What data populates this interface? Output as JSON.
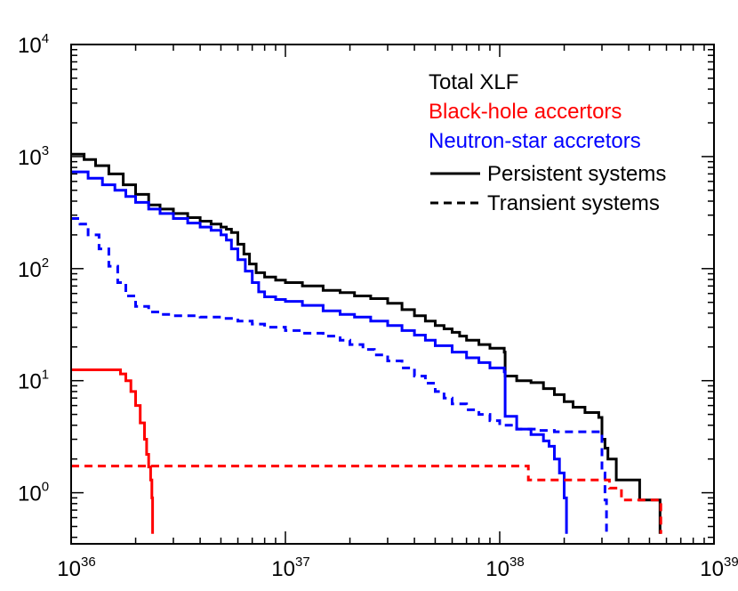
{
  "chart_data": {
    "type": "line",
    "xscale": "log",
    "yscale": "log",
    "xlim": [
      1e+36,
      1e+39
    ],
    "ylim": [
      0.35,
      10000
    ],
    "xlabel": "",
    "ylabel": "",
    "x_ticks": [
      {
        "base": "10",
        "exp": "36"
      },
      {
        "base": "10",
        "exp": "37"
      },
      {
        "base": "10",
        "exp": "38"
      },
      {
        "base": "10",
        "exp": "39"
      }
    ],
    "y_ticks": [
      {
        "base": "10",
        "exp": "0",
        "value": 1
      },
      {
        "base": "10",
        "exp": "1",
        "value": 10
      },
      {
        "base": "10",
        "exp": "2",
        "value": 100
      },
      {
        "base": "10",
        "exp": "3",
        "value": 1000
      },
      {
        "base": "10",
        "exp": "4",
        "value": 10000
      }
    ],
    "legend": {
      "placement": "top-right",
      "color_labels": [
        {
          "text": "Total XLF",
          "color": "#000000"
        },
        {
          "text": "Black-hole accertors",
          "color": "#ff0000"
        },
        {
          "text": "Neutron-star accretors",
          "color": "#0000ff"
        }
      ],
      "style_labels": [
        {
          "text": "Persistent systems",
          "dash": "solid"
        },
        {
          "text": "Transient systems",
          "dash": "dashed"
        }
      ]
    },
    "series": [
      {
        "color": "#000000",
        "dash": "solid",
        "x": [
          1e+36,
          1.15e+36,
          1.3e+36,
          1.5e+36,
          1.75e+36,
          2e+36,
          2.3e+36,
          2.6e+36,
          3e+36,
          3.5e+36,
          4e+36,
          4.5e+36,
          5e+36,
          5.3e+36,
          5.6e+36,
          6e+36,
          6.4e+36,
          6.8e+36,
          7.3e+36,
          8e+36,
          9e+36,
          1e+37,
          1.2e+37,
          1.5e+37,
          1.8e+37,
          2.1e+37,
          2.5e+37,
          3e+37,
          3.5e+37,
          4e+37,
          4.5e+37,
          5e+37,
          5.5e+37,
          6e+37,
          6.5e+37,
          7e+37,
          8e+37,
          9e+37,
          1.05e+38,
          1.06e+38,
          1.2e+38,
          1.4e+38,
          1.6e+38,
          1.8e+38,
          2e+38,
          2.2e+38,
          2.5e+38,
          2.9e+38,
          3e+38,
          3.1e+38,
          3.2e+38,
          3.5e+38,
          4e+38,
          4.5e+38,
          5.5e+38,
          5.6e+38
        ],
        "y": [
          1050,
          940,
          830,
          700,
          560,
          460,
          370,
          340,
          310,
          285,
          265,
          250,
          235,
          225,
          210,
          165,
          135,
          110,
          92,
          84,
          79,
          75,
          70,
          64,
          61,
          57,
          54,
          49,
          43,
          38,
          34,
          31,
          29,
          27,
          25,
          23,
          21,
          19.5,
          18,
          11,
          10,
          9.6,
          8.5,
          7.5,
          6.5,
          5.8,
          5.2,
          4.7,
          3,
          2.5,
          2,
          1.3,
          1.3,
          0.86,
          0.86,
          0.43
        ]
      },
      {
        "color": "#0000ff",
        "dash": "solid",
        "x": [
          1e+36,
          1.2e+36,
          1.4e+36,
          1.6e+36,
          1.8e+36,
          2e+36,
          2.3e+36,
          2.6e+36,
          3e+36,
          3.5e+36,
          4e+36,
          4.5e+36,
          5e+36,
          5.3e+36,
          5.6e+36,
          6e+36,
          6.5e+36,
          7e+36,
          7.5e+36,
          8e+36,
          9e+36,
          1e+37,
          1.2e+37,
          1.5e+37,
          1.8e+37,
          2.1e+37,
          2.5e+37,
          3e+37,
          3.5e+37,
          4e+37,
          4.5e+37,
          5e+37,
          6e+37,
          7e+37,
          8e+37,
          9e+37,
          1.05e+38,
          1.06e+38,
          1.2e+38,
          1.4e+38,
          1.6e+38,
          1.7e+38,
          1.8e+38,
          1.9e+38,
          2e+38,
          2.05e+38
        ],
        "y": [
          730,
          640,
          560,
          500,
          440,
          390,
          340,
          310,
          280,
          255,
          235,
          220,
          200,
          180,
          150,
          120,
          95,
          75,
          62,
          56,
          53,
          51,
          47,
          42,
          39,
          37,
          34,
          31,
          28,
          25.5,
          23,
          20.5,
          18,
          16,
          14.5,
          13,
          12,
          4.8,
          3.7,
          3.3,
          2.9,
          2.6,
          2,
          1.5,
          0.9,
          0.43
        ]
      },
      {
        "color": "#0000ff",
        "dash": "dashed",
        "x": [
          1e+36,
          1.1e+36,
          1.2e+36,
          1.35e+36,
          1.5e+36,
          1.65e+36,
          1.8e+36,
          2e+36,
          2.3e+36,
          2.6e+36,
          3e+36,
          4e+36,
          5e+36,
          6e+36,
          7e+36,
          8e+36,
          1e+37,
          1.2e+37,
          1.5e+37,
          1.8e+37,
          2e+37,
          2.3e+37,
          2.6e+37,
          3e+37,
          3.5e+37,
          4e+37,
          4.5e+37,
          5e+37,
          5.5e+37,
          6e+37,
          7e+37,
          8e+37,
          9e+37,
          1e+38,
          1.2e+38,
          1.5e+38,
          1.8e+38,
          2.5e+38,
          2.9e+38,
          3e+38,
          3.1e+38,
          3.15e+38
        ],
        "y": [
          280,
          250,
          200,
          150,
          105,
          75,
          57,
          46,
          41,
          39,
          38,
          37,
          36,
          34,
          32,
          30,
          28,
          26.5,
          25,
          23,
          21,
          19,
          17,
          15,
          13,
          11,
          9.5,
          8,
          7,
          6.2,
          5.5,
          5,
          4.4,
          4,
          3.7,
          3.6,
          3.5,
          3.5,
          3.5,
          1.5,
          0.86,
          0.43
        ]
      },
      {
        "color": "#ff0000",
        "dash": "solid",
        "x": [
          1e+36,
          1.6e+36,
          1.7e+36,
          1.8e+36,
          1.9e+36,
          2e+36,
          2.1e+36,
          2.2e+36,
          2.25e+36,
          2.3e+36,
          2.35e+36,
          2.38e+36,
          2.4e+36
        ],
        "y": [
          12.5,
          12.5,
          11.5,
          10,
          8,
          6,
          4.2,
          3,
          2.2,
          1.7,
          1.3,
          0.9,
          0.43
        ]
      },
      {
        "color": "#ff0000",
        "dash": "dashed",
        "x": [
          1e+36,
          1.35e+38,
          1.36e+38,
          3.2e+38,
          3.25e+38,
          3.6e+38,
          3.7e+38,
          5.6e+38,
          5.65e+38
        ],
        "y": [
          1.73,
          1.73,
          1.3,
          1.3,
          1.1,
          1.1,
          0.86,
          0.86,
          0.43
        ]
      }
    ]
  }
}
